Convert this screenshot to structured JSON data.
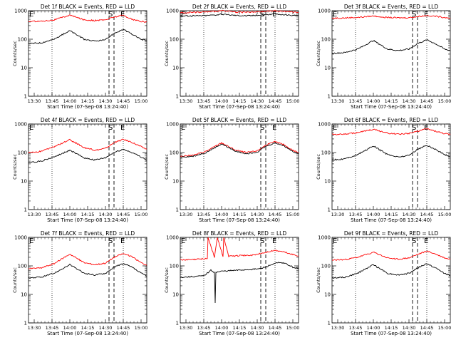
{
  "page": {
    "title": ""
  },
  "colors": {
    "events": "#000000",
    "lld": "#ff0000",
    "axis": "#000000"
  },
  "chart_data": [
    {
      "type": "line",
      "panel": 0,
      "title": "Det 1f BLACK = Events, RED = LLD",
      "xlabel": "Start Time (07-Sep-08 13:24:40)",
      "ylabel": "Counts/sec",
      "ylog": true,
      "ylim": [
        1,
        1000
      ],
      "xlim": [
        13.42,
        15.08
      ],
      "x_ticks": [
        "13:30",
        "13:45",
        "14:00",
        "14:15",
        "14:30",
        "14:45",
        "15:00"
      ],
      "y_ticks": [
        "1",
        "10",
        "100",
        "1000"
      ],
      "markers": {
        "E_left": "E",
        "S": "S",
        "E_right": "E"
      },
      "dotted_x": [
        13.75,
        14.75
      ],
      "dashed_x": [
        14.55,
        14.62
      ],
      "series": [
        {
          "name": "LLD",
          "color": "#ff0000",
          "x": [
            13.42,
            13.6,
            13.78,
            14.0,
            14.2,
            14.35,
            14.5,
            14.62,
            14.75,
            14.87,
            15.0,
            15.08
          ],
          "y": [
            420,
            430,
            480,
            700,
            480,
            450,
            480,
            600,
            700,
            500,
            420,
            400
          ]
        },
        {
          "name": "Events",
          "color": "#000000",
          "x": [
            13.42,
            13.6,
            13.78,
            14.0,
            14.2,
            14.35,
            14.5,
            14.62,
            14.75,
            14.87,
            15.0,
            15.08
          ],
          "y": [
            70,
            75,
            100,
            200,
            100,
            85,
            95,
            160,
            220,
            150,
            100,
            90
          ]
        }
      ]
    },
    {
      "type": "line",
      "panel": 1,
      "title": "Det 2f BLACK = Events, RED = LLD",
      "xlabel": "Start Time (07-Sep-08 13:24:40)",
      "ylabel": "Counts/sec",
      "ylog": true,
      "ylim": [
        1,
        1000
      ],
      "xlim": [
        13.42,
        15.08
      ],
      "x_ticks": [
        "13:30",
        "13:45",
        "14:00",
        "14:15",
        "14:30",
        "14:45",
        "15:00"
      ],
      "y_ticks": [
        "1",
        "10",
        "100",
        "1000"
      ],
      "markers": {
        "E_left": "E",
        "S": "S",
        "E_right": "E"
      },
      "dotted_x": [
        13.75,
        14.75
      ],
      "dashed_x": [
        14.55,
        14.62
      ],
      "series": [
        {
          "name": "LLD",
          "color": "#ff0000",
          "x": [
            13.42,
            13.6,
            13.78,
            14.0,
            14.2,
            14.35,
            14.5,
            14.62,
            14.75,
            14.87,
            15.0,
            15.08
          ],
          "y": [
            850,
            870,
            900,
            1000,
            900,
            880,
            900,
            950,
            1000,
            950,
            900,
            880
          ]
        },
        {
          "name": "Events",
          "color": "#000000",
          "x": [
            13.42,
            13.6,
            13.78,
            14.0,
            14.2,
            14.35,
            14.5,
            14.62,
            14.75,
            14.87,
            15.0,
            15.08
          ],
          "y": [
            650,
            660,
            680,
            750,
            690,
            670,
            690,
            730,
            760,
            720,
            690,
            670
          ]
        }
      ]
    },
    {
      "type": "line",
      "panel": 2,
      "title": "Det 3f BLACK = Events, RED = LLD",
      "xlabel": "Start Time (07-Sep-08 13:24:40)",
      "ylabel": "Counts/sec",
      "ylog": true,
      "ylim": [
        1,
        1000
      ],
      "xlim": [
        13.42,
        15.08
      ],
      "x_ticks": [
        "13:30",
        "13:45",
        "14:00",
        "14:15",
        "14:30",
        "14:45",
        "15:00"
      ],
      "y_ticks": [
        "1",
        "10",
        "100",
        "1000"
      ],
      "markers": {
        "E_left": "E",
        "S": "S",
        "E_right": "E"
      },
      "dotted_x": [
        13.75,
        14.75
      ],
      "dashed_x": [
        14.55,
        14.62
      ],
      "series": [
        {
          "name": "LLD",
          "color": "#ff0000",
          "x": [
            13.42,
            13.6,
            13.78,
            14.0,
            14.2,
            14.35,
            14.5,
            14.62,
            14.75,
            14.87,
            15.0,
            15.08
          ],
          "y": [
            550,
            560,
            580,
            650,
            580,
            560,
            570,
            620,
            680,
            640,
            580,
            560
          ]
        },
        {
          "name": "Events",
          "color": "#000000",
          "x": [
            13.42,
            13.6,
            13.78,
            14.0,
            14.2,
            14.35,
            14.5,
            14.62,
            14.75,
            14.87,
            15.0,
            15.08
          ],
          "y": [
            32,
            34,
            45,
            90,
            45,
            40,
            45,
            70,
            95,
            70,
            45,
            40
          ]
        }
      ]
    },
    {
      "type": "line",
      "panel": 3,
      "title": "Det 4f BLACK = Events, RED = LLD",
      "xlabel": "Start Time (07-Sep-08 13:24:40)",
      "ylabel": "Counts/sec",
      "ylog": true,
      "ylim": [
        1,
        1000
      ],
      "xlim": [
        13.42,
        15.08
      ],
      "x_ticks": [
        "13:30",
        "13:45",
        "14:00",
        "14:15",
        "14:30",
        "14:45",
        "15:00"
      ],
      "y_ticks": [
        "1",
        "10",
        "100",
        "1000"
      ],
      "markers": {
        "E_left": "E",
        "S": "S",
        "E_right": "E"
      },
      "dotted_x": [
        13.75,
        14.75
      ],
      "dashed_x": [
        14.55,
        14.62
      ],
      "series": [
        {
          "name": "LLD",
          "color": "#ff0000",
          "x": [
            13.42,
            13.6,
            13.78,
            14.0,
            14.2,
            14.35,
            14.5,
            14.62,
            14.75,
            14.87,
            15.0,
            15.08
          ],
          "y": [
            100,
            110,
            160,
            280,
            150,
            120,
            140,
            220,
            290,
            230,
            160,
            130
          ]
        },
        {
          "name": "Events",
          "color": "#000000",
          "x": [
            13.42,
            13.6,
            13.78,
            14.0,
            14.2,
            14.35,
            14.5,
            14.62,
            14.75,
            14.87,
            15.0,
            15.08
          ],
          "y": [
            45,
            50,
            70,
            120,
            65,
            55,
            65,
            100,
            130,
            100,
            70,
            55
          ]
        }
      ]
    },
    {
      "type": "line",
      "panel": 4,
      "title": "Det 5f BLACK = Events, RED = LLD",
      "xlabel": "Start Time (07-Sep-08 13:24:40)",
      "ylabel": "Counts/sec",
      "ylog": true,
      "ylim": [
        1,
        1000
      ],
      "xlim": [
        13.42,
        15.08
      ],
      "x_ticks": [
        "13:30",
        "13:45",
        "14:00",
        "14:15",
        "14:30",
        "14:45",
        "15:00"
      ],
      "y_ticks": [
        "1",
        "10",
        "100",
        "1000"
      ],
      "markers": {
        "E_left": "E",
        "S": "S",
        "E_right": "E"
      },
      "dotted_x": [
        13.75,
        14.75
      ],
      "dashed_x": [
        14.55,
        14.62
      ],
      "series": [
        {
          "name": "LLD",
          "color": "#ff0000",
          "x": [
            13.42,
            13.6,
            13.78,
            14.0,
            14.2,
            14.35,
            14.5,
            14.62,
            14.75,
            14.87,
            15.0,
            15.08
          ],
          "y": [
            75,
            80,
            110,
            220,
            120,
            100,
            115,
            180,
            240,
            190,
            120,
            100
          ]
        },
        {
          "name": "Events",
          "color": "#000000",
          "x": [
            13.42,
            13.6,
            13.78,
            14.0,
            14.2,
            14.35,
            14.5,
            14.62,
            14.75,
            14.87,
            15.0,
            15.08
          ],
          "y": [
            70,
            74,
            100,
            200,
            110,
            92,
            105,
            165,
            220,
            175,
            110,
            90
          ]
        }
      ]
    },
    {
      "type": "line",
      "panel": 5,
      "title": "Det 6f BLACK = Events, RED = LLD",
      "xlabel": "Start Time (07-Sep-08 13:24:40)",
      "ylabel": "Counts/sec",
      "ylog": true,
      "ylim": [
        1,
        1000
      ],
      "xlim": [
        13.42,
        15.08
      ],
      "x_ticks": [
        "13:30",
        "13:45",
        "14:00",
        "14:15",
        "14:30",
        "14:45",
        "15:00"
      ],
      "y_ticks": [
        "1",
        "10",
        "100",
        "1000"
      ],
      "markers": {
        "E_left": "E",
        "S": "S",
        "E_right": "E"
      },
      "dotted_x": [
        13.75,
        14.75
      ],
      "dashed_x": [
        14.55,
        14.62
      ],
      "series": [
        {
          "name": "LLD",
          "color": "#ff0000",
          "x": [
            13.42,
            13.6,
            13.78,
            14.0,
            14.2,
            14.35,
            14.5,
            14.62,
            14.75,
            14.87,
            15.0,
            15.08
          ],
          "y": [
            430,
            440,
            500,
            650,
            480,
            440,
            470,
            560,
            680,
            560,
            460,
            430
          ]
        },
        {
          "name": "Events",
          "color": "#000000",
          "x": [
            13.42,
            13.6,
            13.78,
            14.0,
            14.2,
            14.35,
            14.5,
            14.62,
            14.75,
            14.87,
            15.0,
            15.08
          ],
          "y": [
            55,
            60,
            85,
            170,
            85,
            70,
            80,
            130,
            180,
            130,
            85,
            70
          ]
        }
      ]
    },
    {
      "type": "line",
      "panel": 6,
      "title": "Det 7f BLACK = Events, RED = LLD",
      "xlabel": "Start Time (07-Sep-08 13:24:40)",
      "ylabel": "Counts/sec",
      "ylog": true,
      "ylim": [
        1,
        1000
      ],
      "xlim": [
        13.42,
        15.08
      ],
      "x_ticks": [
        "13:30",
        "13:45",
        "14:00",
        "14:15",
        "14:30",
        "14:45",
        "15:00"
      ],
      "y_ticks": [
        "1",
        "10",
        "100",
        "1000"
      ],
      "markers": {
        "E_left": "E",
        "S": "S",
        "E_right": "E"
      },
      "dotted_x": [
        13.75,
        14.75
      ],
      "dashed_x": [
        14.55,
        14.62
      ],
      "series": [
        {
          "name": "LLD",
          "color": "#ff0000",
          "x": [
            13.42,
            13.6,
            13.78,
            14.0,
            14.2,
            14.35,
            14.5,
            14.62,
            14.75,
            14.87,
            15.0,
            15.08
          ],
          "y": [
            80,
            85,
            120,
            260,
            130,
            110,
            125,
            200,
            270,
            210,
            130,
            105
          ]
        },
        {
          "name": "Events",
          "color": "#000000",
          "x": [
            13.42,
            13.6,
            13.78,
            14.0,
            14.2,
            14.35,
            14.5,
            14.62,
            14.75,
            14.87,
            15.0,
            15.08
          ],
          "y": [
            38,
            40,
            55,
            110,
            55,
            48,
            55,
            90,
            120,
            90,
            55,
            45
          ]
        }
      ]
    },
    {
      "type": "line",
      "panel": 7,
      "title": "Det 8f BLACK = Events, RED = LLD",
      "xlabel": "Start Time (07-Sep-08 13:24:40)",
      "ylabel": "Counts/sec",
      "ylog": true,
      "ylim": [
        1,
        1000
      ],
      "xlim": [
        13.42,
        15.08
      ],
      "x_ticks": [
        "13:30",
        "13:45",
        "14:00",
        "14:15",
        "14:30",
        "14:45",
        "15:00"
      ],
      "y_ticks": [
        "1",
        "10",
        "100",
        "1000"
      ],
      "markers": {
        "E_left": "E",
        "S": "S",
        "E_right": "E"
      },
      "dotted_x": [
        13.75,
        14.75
      ],
      "dashed_x": [
        14.55,
        14.62
      ],
      "series": [
        {
          "name": "LLD",
          "color": "#ff0000",
          "x": [
            13.42,
            13.6,
            13.75,
            13.8,
            13.81,
            13.9,
            13.94,
            14.02,
            14.03,
            14.1,
            14.3,
            14.45,
            14.6,
            14.75,
            14.85,
            15.0,
            15.08
          ],
          "y": [
            160,
            165,
            180,
            180,
            1000,
            200,
            1000,
            210,
            1000,
            220,
            230,
            240,
            290,
            350,
            320,
            250,
            220
          ]
        },
        {
          "name": "Events",
          "color": "#000000",
          "x": [
            13.42,
            13.6,
            13.75,
            13.85,
            13.9,
            13.91,
            13.92,
            14.0,
            14.2,
            14.4,
            14.55,
            14.7,
            14.8,
            14.9,
            15.0,
            15.08
          ],
          "y": [
            40,
            42,
            45,
            70,
            60,
            5,
            60,
            65,
            70,
            75,
            80,
            110,
            130,
            120,
            90,
            80
          ]
        }
      ]
    },
    {
      "type": "line",
      "panel": 8,
      "title": "Det 9f BLACK = Events, RED = LLD",
      "xlabel": "Start Time (07-Sep-08 13:24:40)",
      "ylabel": "Counts/sec",
      "ylog": true,
      "ylim": [
        1,
        1000
      ],
      "xlim": [
        13.42,
        15.08
      ],
      "x_ticks": [
        "13:30",
        "13:45",
        "14:00",
        "14:15",
        "14:30",
        "14:45",
        "15:00"
      ],
      "y_ticks": [
        "1",
        "10",
        "100",
        "1000"
      ],
      "markers": {
        "E_left": "E",
        "S": "S",
        "E_right": "E"
      },
      "dotted_x": [
        13.75,
        14.75
      ],
      "dashed_x": [
        14.55,
        14.62
      ],
      "series": [
        {
          "name": "LLD",
          "color": "#ff0000",
          "x": [
            13.42,
            13.6,
            13.78,
            14.0,
            14.2,
            14.35,
            14.5,
            14.62,
            14.75,
            14.87,
            15.0,
            15.08
          ],
          "y": [
            160,
            165,
            200,
            300,
            190,
            170,
            190,
            250,
            330,
            260,
            190,
            170
          ]
        },
        {
          "name": "Events",
          "color": "#000000",
          "x": [
            13.42,
            13.6,
            13.78,
            14.0,
            14.2,
            14.35,
            14.5,
            14.62,
            14.75,
            14.87,
            15.0,
            15.08
          ],
          "y": [
            38,
            40,
            55,
            110,
            55,
            48,
            55,
            85,
            120,
            85,
            55,
            45
          ]
        }
      ]
    }
  ]
}
